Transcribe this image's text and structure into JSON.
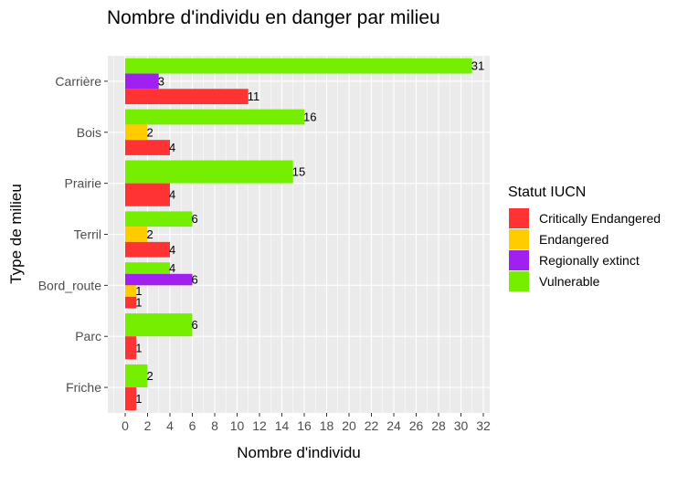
{
  "chart_data": {
    "type": "bar",
    "orientation": "horizontal",
    "title": "Nombre d'individu en danger par milieu",
    "xlabel": "Nombre d'individu",
    "ylabel": "Type de milieu",
    "xlim": [
      0,
      32
    ],
    "x_ticks": [
      0,
      2,
      4,
      6,
      8,
      10,
      12,
      14,
      16,
      18,
      20,
      22,
      24,
      26,
      28,
      30,
      32
    ],
    "categories": [
      "Carrière",
      "Bois",
      "Prairie",
      "Terril",
      "Bord_route",
      "Parc",
      "Friche"
    ],
    "grid": true,
    "legend": {
      "title": "Statut IUCN",
      "placement": "right",
      "entries": [
        "Critically Endangered",
        "Endangered",
        "Regionally extinct",
        "Vulnerable"
      ]
    },
    "series": [
      {
        "name": "Critically Endangered",
        "color": "#ff3333",
        "values": [
          11,
          4,
          4,
          4,
          1,
          1,
          1
        ]
      },
      {
        "name": "Endangered",
        "color": "#ffcc00",
        "values": [
          null,
          2,
          null,
          2,
          1,
          null,
          null
        ]
      },
      {
        "name": "Regionally extinct",
        "color": "#a020f0",
        "values": [
          3,
          null,
          null,
          null,
          6,
          null,
          null
        ]
      },
      {
        "name": "Vulnerable",
        "color": "#76ee00",
        "values": [
          31,
          16,
          15,
          6,
          4,
          6,
          2
        ]
      }
    ]
  }
}
